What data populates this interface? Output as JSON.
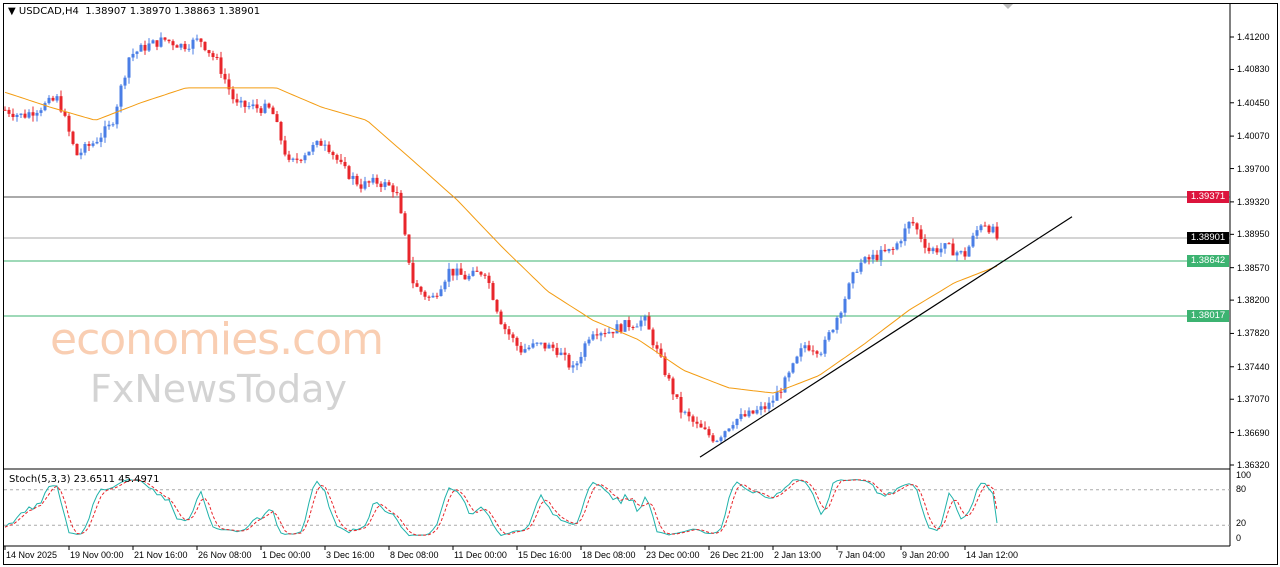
{
  "header": {
    "symbol": "USDCAD,H4",
    "ohlc": "1.38907 1.38970 1.38863 1.38901"
  },
  "indicator": {
    "label": "Stoch(5,3,3) 23.6511 45.4971",
    "levels": [
      "100",
      "80",
      "20",
      "0"
    ]
  },
  "watermark": {
    "brand1": "economies.com",
    "brand2": "FxNewsToday"
  },
  "colors": {
    "bull": "#4a7ee6",
    "bear": "#e8262b",
    "ma": "#f39c12",
    "stoch_main": "#20b2aa",
    "stoch_signal": "#e8262b",
    "level_red": "#dc143c",
    "level_green": "#3cb371",
    "current": "#000000"
  },
  "chart_data": {
    "type": "candlestick",
    "symbol": "USDCAD",
    "timeframe": "H4",
    "ylim": [
      1.3632,
      1.4155
    ],
    "y_ticks": [
      "1.41200",
      "1.40830",
      "1.40450",
      "1.40070",
      "1.39700",
      "1.39320",
      "1.38950",
      "1.38570",
      "1.38200",
      "1.37820",
      "1.37440",
      "1.37070",
      "1.36690",
      "1.36320"
    ],
    "x_ticks": [
      "14 Nov 2025",
      "19 Nov 00:00",
      "21 Nov 16:00",
      "26 Nov 08:00",
      "1 Dec 00:00",
      "3 Dec 16:00",
      "8 Dec 08:00",
      "11 Dec 00:00",
      "15 Dec 16:00",
      "18 Dec 08:00",
      "23 Dec 00:00",
      "26 Dec 21:00",
      "2 Jan 13:00",
      "7 Jan 04:00",
      "9 Jan 20:00",
      "14 Jan 12:00"
    ],
    "price_path_approx": [
      1.4037,
      1.403,
      1.404,
      1.405,
      1.3985,
      1.4,
      1.402,
      1.4099,
      1.411,
      1.4117,
      1.411,
      1.4117,
      1.409,
      1.4042,
      1.404,
      1.4037,
      1.3974,
      1.399,
      1.4002,
      1.397,
      1.3951,
      1.3955,
      1.3946,
      1.3837,
      1.382,
      1.3854,
      1.3845,
      1.3854,
      1.3792,
      1.3763,
      1.3769,
      1.3765,
      1.374,
      1.3786,
      1.3785,
      1.3792,
      1.3797,
      1.3746,
      1.3695,
      1.3675,
      1.3661,
      1.3683,
      1.369,
      1.37,
      1.3729,
      1.3769,
      1.3763,
      1.3809,
      1.386,
      1.387,
      1.3877,
      1.3911,
      1.3877,
      1.388,
      1.3871,
      1.3911,
      1.389
    ],
    "moving_average_approx": [
      1.4057,
      1.404,
      1.4025,
      1.4045,
      1.4062,
      1.4062,
      1.4062,
      1.404,
      1.4025,
      1.398,
      1.3934,
      1.388,
      1.383,
      1.3797,
      1.3775,
      1.374,
      1.372,
      1.3714,
      1.3734,
      1.377,
      1.3809,
      1.384,
      1.386
    ],
    "horizontal_levels": [
      {
        "price": "1.39371",
        "color": "level_red"
      },
      {
        "price": "1.38901",
        "color": "current"
      },
      {
        "price": "1.38642",
        "color": "level_green"
      },
      {
        "price": "1.38017",
        "color": "level_green"
      }
    ],
    "trendline": {
      "from_price": 1.3641,
      "to_price": 1.3915
    },
    "stochastic": {
      "k": 23.6511,
      "d": 45.4971,
      "upper": 80,
      "lower": 20
    }
  }
}
